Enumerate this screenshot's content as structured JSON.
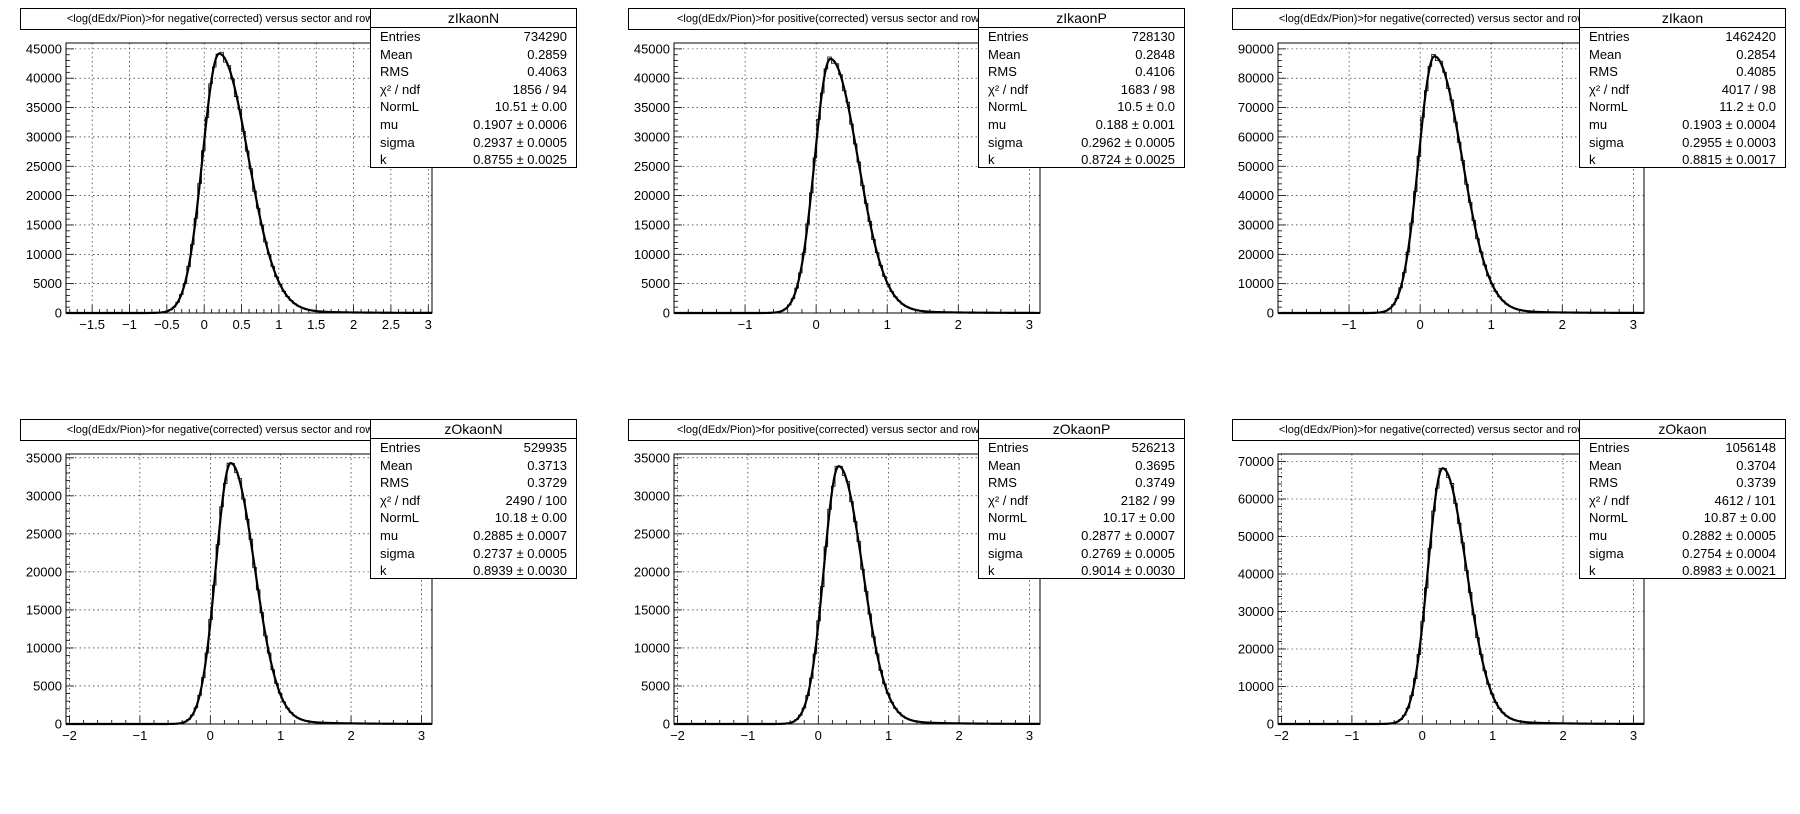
{
  "chart_data": [
    {
      "type": "bar",
      "title": "<log(dEdx/Pion)>for negative(corrected) versus sector and row",
      "stats": {
        "name": "zIkaonN",
        "rows": [
          {
            "label": "Entries",
            "value": "734290"
          },
          {
            "label": "Mean",
            "value": "0.2859"
          },
          {
            "label": "RMS",
            "value": "0.4063"
          },
          {
            "label": "χ² / ndf",
            "value": "1856 / 94"
          },
          {
            "label": "NormL",
            "value": "10.51 ± 0.00"
          },
          {
            "label": "mu",
            "value": "0.1907 ± 0.0006"
          },
          {
            "label": "sigma",
            "value": "0.2937 ± 0.0005"
          },
          {
            "label": "k",
            "value": "0.8755 ± 0.0025"
          }
        ]
      },
      "xlim": [
        -1.85,
        3.05
      ],
      "ylim": [
        0,
        46000
      ],
      "xticks": [
        -1.5,
        -1,
        -0.5,
        0,
        0.5,
        1,
        1.5,
        2,
        2.5,
        3
      ],
      "xtick_labels": [
        "−1.5",
        "−1",
        "−0.5",
        "0",
        "0.5",
        "1",
        "1.5",
        "2",
        "2.5",
        "3"
      ],
      "yticks": [
        0,
        5000,
        10000,
        15000,
        20000,
        25000,
        30000,
        35000,
        40000,
        45000
      ],
      "ytick_labels": [
        "0",
        "5000",
        "10000",
        "15000",
        "20000",
        "25000",
        "30000",
        "35000",
        "40000",
        "45000"
      ],
      "peak_x": 0.2,
      "peak_y": 44200,
      "sigma_left": 0.22,
      "sigma_right": 0.38,
      "grid": true
    },
    {
      "type": "bar",
      "title": "<log(dEdx/Pion)>for positive(corrected) versus sector and row",
      "stats": {
        "name": "zIkaonP",
        "rows": [
          {
            "label": "Entries",
            "value": "728130"
          },
          {
            "label": "Mean",
            "value": "0.2848"
          },
          {
            "label": "RMS",
            "value": "0.4106"
          },
          {
            "label": "χ² / ndf",
            "value": "1683 / 98"
          },
          {
            "label": "NormL",
            "value": "10.5 ± 0.0"
          },
          {
            "label": "mu",
            "value": "0.188 ± 0.001"
          },
          {
            "label": "sigma",
            "value": "0.2962 ± 0.0005"
          },
          {
            "label": "k",
            "value": "0.8724 ± 0.0025"
          }
        ]
      },
      "xlim": [
        -2.0,
        3.15
      ],
      "ylim": [
        0,
        46000
      ],
      "xticks": [
        -1,
        0,
        1,
        2,
        3
      ],
      "xtick_labels": [
        "−1",
        "0",
        "1",
        "2",
        "3"
      ],
      "yticks": [
        0,
        5000,
        10000,
        15000,
        20000,
        25000,
        30000,
        35000,
        40000,
        45000
      ],
      "ytick_labels": [
        "0",
        "5000",
        "10000",
        "15000",
        "20000",
        "25000",
        "30000",
        "35000",
        "40000",
        "45000"
      ],
      "peak_x": 0.2,
      "peak_y": 43300,
      "sigma_left": 0.22,
      "sigma_right": 0.38,
      "grid": true
    },
    {
      "type": "bar",
      "title": "<log(dEdx/Pion)>for negative(corrected) versus sector and row",
      "stats": {
        "name": "zIkaon",
        "rows": [
          {
            "label": "Entries",
            "value": "1462420"
          },
          {
            "label": "Mean",
            "value": "0.2854"
          },
          {
            "label": "RMS",
            "value": "0.4085"
          },
          {
            "label": "χ² / ndf",
            "value": "4017 / 98"
          },
          {
            "label": "NormL",
            "value": "11.2 ± 0.0"
          },
          {
            "label": "mu",
            "value": "0.1903 ± 0.0004"
          },
          {
            "label": "sigma",
            "value": "0.2955 ± 0.0003"
          },
          {
            "label": "k",
            "value": "0.8815 ± 0.0017"
          }
        ]
      },
      "xlim": [
        -2.0,
        3.15
      ],
      "ylim": [
        0,
        92000
      ],
      "xticks": [
        -1,
        0,
        1,
        2,
        3
      ],
      "xtick_labels": [
        "−1",
        "0",
        "1",
        "2",
        "3"
      ],
      "yticks": [
        0,
        10000,
        20000,
        30000,
        40000,
        50000,
        60000,
        70000,
        80000,
        90000
      ],
      "ytick_labels": [
        "0",
        "10000",
        "20000",
        "30000",
        "40000",
        "50000",
        "60000",
        "70000",
        "80000",
        "90000"
      ],
      "peak_x": 0.2,
      "peak_y": 87500,
      "sigma_left": 0.22,
      "sigma_right": 0.38,
      "grid": true
    },
    {
      "type": "bar",
      "title": "<log(dEdx/Pion)>for negative(corrected) versus sector and row",
      "stats": {
        "name": "zOkaonN",
        "rows": [
          {
            "label": "Entries",
            "value": "529935"
          },
          {
            "label": "Mean",
            "value": "0.3713"
          },
          {
            "label": "RMS",
            "value": "0.3729"
          },
          {
            "label": "χ² / ndf",
            "value": "2490 / 100"
          },
          {
            "label": "NormL",
            "value": "10.18 ± 0.00"
          },
          {
            "label": "mu",
            "value": "0.2885 ± 0.0007"
          },
          {
            "label": "sigma",
            "value": "0.2737 ± 0.0005"
          },
          {
            "label": "k",
            "value": "0.8939 ± 0.0030"
          }
        ]
      },
      "xlim": [
        -2.05,
        3.15
      ],
      "ylim": [
        0,
        35500
      ],
      "xticks": [
        -2,
        -1,
        0,
        1,
        2,
        3
      ],
      "xtick_labels": [
        "−2",
        "−1",
        "0",
        "1",
        "2",
        "3"
      ],
      "yticks": [
        0,
        5000,
        10000,
        15000,
        20000,
        25000,
        30000,
        35000
      ],
      "ytick_labels": [
        "0",
        "5000",
        "10000",
        "15000",
        "20000",
        "25000",
        "30000",
        "35000"
      ],
      "peak_x": 0.29,
      "peak_y": 34300,
      "sigma_left": 0.21,
      "sigma_right": 0.33,
      "grid": true
    },
    {
      "type": "bar",
      "title": "<log(dEdx/Pion)>for positive(corrected) versus sector and row",
      "stats": {
        "name": "zOkaonP",
        "rows": [
          {
            "label": "Entries",
            "value": "526213"
          },
          {
            "label": "Mean",
            "value": "0.3695"
          },
          {
            "label": "RMS",
            "value": "0.3749"
          },
          {
            "label": "χ² / ndf",
            "value": "2182 / 99"
          },
          {
            "label": "NormL",
            "value": "10.17 ± 0.00"
          },
          {
            "label": "mu",
            "value": "0.2877 ± 0.0007"
          },
          {
            "label": "sigma",
            "value": "0.2769 ± 0.0005"
          },
          {
            "label": "k",
            "value": "0.9014 ± 0.0030"
          }
        ]
      },
      "xlim": [
        -2.05,
        3.15
      ],
      "ylim": [
        0,
        35500
      ],
      "xticks": [
        -2,
        -1,
        0,
        1,
        2,
        3
      ],
      "xtick_labels": [
        "−2",
        "−1",
        "0",
        "1",
        "2",
        "3"
      ],
      "yticks": [
        0,
        5000,
        10000,
        15000,
        20000,
        25000,
        30000,
        35000
      ],
      "ytick_labels": [
        "0",
        "5000",
        "10000",
        "15000",
        "20000",
        "25000",
        "30000",
        "35000"
      ],
      "peak_x": 0.29,
      "peak_y": 33900,
      "sigma_left": 0.21,
      "sigma_right": 0.33,
      "grid": true
    },
    {
      "type": "bar",
      "title": "<log(dEdx/Pion)>for negative(corrected) versus sector and row",
      "stats": {
        "name": "zOkaon",
        "rows": [
          {
            "label": "Entries",
            "value": "1056148"
          },
          {
            "label": "Mean",
            "value": "0.3704"
          },
          {
            "label": "RMS",
            "value": "0.3739"
          },
          {
            "label": "χ² / ndf",
            "value": "4612 / 101"
          },
          {
            "label": "NormL",
            "value": "10.87 ± 0.00"
          },
          {
            "label": "mu",
            "value": "0.2882 ± 0.0005"
          },
          {
            "label": "sigma",
            "value": "0.2754 ± 0.0004"
          },
          {
            "label": "k",
            "value": "0.8983 ± 0.0021"
          }
        ]
      },
      "xlim": [
        -2.05,
        3.15
      ],
      "ylim": [
        0,
        72000
      ],
      "xticks": [
        -2,
        -1,
        0,
        1,
        2,
        3
      ],
      "xtick_labels": [
        "−2",
        "−1",
        "0",
        "1",
        "2",
        "3"
      ],
      "yticks": [
        0,
        10000,
        20000,
        30000,
        40000,
        50000,
        60000,
        70000
      ],
      "ytick_labels": [
        "0",
        "10000",
        "20000",
        "30000",
        "40000",
        "50000",
        "60000",
        "70000"
      ],
      "peak_x": 0.29,
      "peak_y": 68200,
      "sigma_left": 0.21,
      "sigma_right": 0.33,
      "grid": true
    }
  ]
}
